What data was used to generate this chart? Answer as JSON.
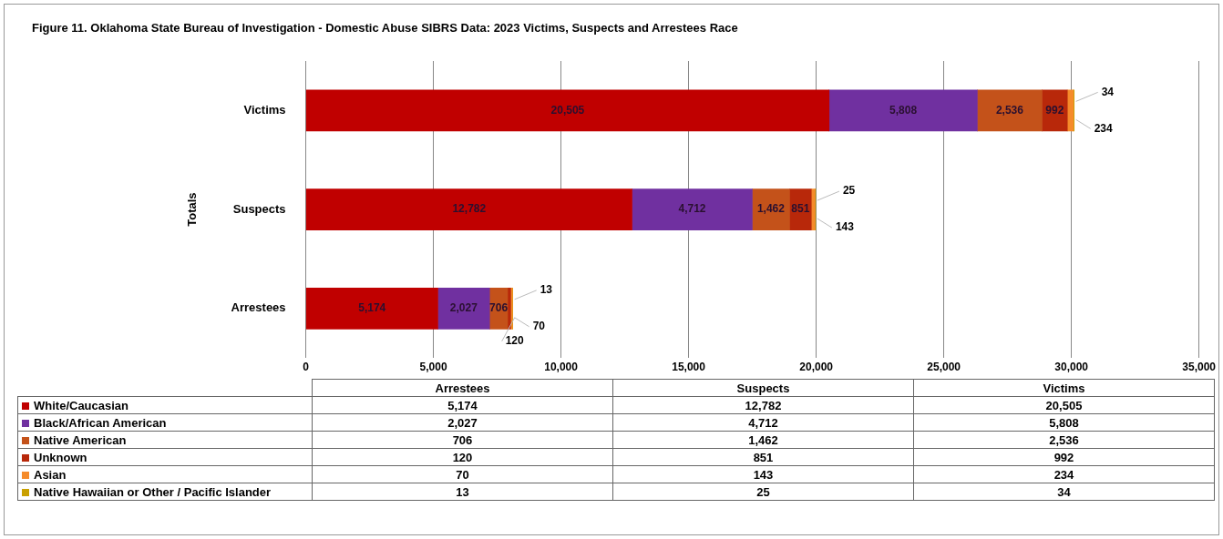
{
  "chart_data": {
    "type": "bar",
    "orientation": "horizontal",
    "stacked": true,
    "title": "Figure 11. Oklahoma State Bureau of Investigation - Domestic Abuse SIBRS Data: 2023 Victims, Suspects and Arrestees Race",
    "ylabel": "Totals",
    "categories": [
      "Victims",
      "Suspects",
      "Arrestees"
    ],
    "series": [
      {
        "name": "White/Caucasian",
        "color": "#c00000",
        "values": [
          20505,
          12782,
          5174
        ],
        "value_labels": [
          "20,505",
          "12,782",
          "5,174"
        ]
      },
      {
        "name": "Black/African American",
        "color": "#7030a0",
        "values": [
          5808,
          4712,
          2027
        ],
        "value_labels": [
          "5,808",
          "4,712",
          "2,027"
        ]
      },
      {
        "name": "Native American",
        "color": "#c4521a",
        "values": [
          2536,
          1462,
          706
        ],
        "value_labels": [
          "2,536",
          "1,462",
          "706"
        ]
      },
      {
        "name": "Unknown",
        "color": "#b8280a",
        "values": [
          992,
          851,
          120
        ],
        "value_labels": [
          "992",
          "851",
          "120"
        ]
      },
      {
        "name": "Asian",
        "color": "#f58b2b",
        "values": [
          234,
          143,
          70
        ],
        "value_labels": [
          "234",
          "143",
          "70"
        ]
      },
      {
        "name": "Native Hawaiian or Other / Pacific Islander",
        "color": "#c9a000",
        "values": [
          34,
          25,
          13
        ],
        "value_labels": [
          "34",
          "25",
          "13"
        ]
      }
    ],
    "xlim": [
      0,
      35000
    ],
    "xticks": [
      0,
      {
        "value": 5000,
        "label": "5,000"
      },
      {
        "value": 10000,
        "label": "10,000"
      },
      {
        "value": 15000,
        "label": "15,000"
      },
      {
        "value": 20000,
        "label": "20,000"
      },
      {
        "value": 25000,
        "label": "25,000"
      },
      {
        "value": 30000,
        "label": "30,000"
      },
      {
        "value": 35000,
        "label": "35,000"
      }
    ],
    "grid": "x",
    "legend": "bottom"
  }
}
